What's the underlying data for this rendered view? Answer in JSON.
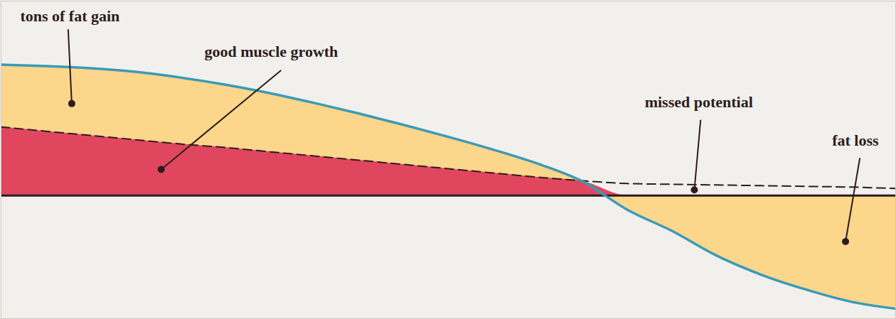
{
  "chart_data": {
    "type": "area",
    "x": [
      0,
      5,
      10,
      15,
      20,
      25,
      30,
      35,
      40,
      45,
      50,
      55,
      60,
      65,
      70,
      75,
      80,
      85,
      90,
      95,
      100
    ],
    "series": [
      {
        "color": "#3a9ab8",
        "line_style": "solid",
        "values": [
          185,
          183,
          180,
          175,
          167,
          157,
          145,
          131,
          116,
          100,
          83,
          65,
          45,
          20,
          -20,
          -50,
          -85,
          -112,
          -133,
          -150,
          -160
        ]
      },
      {
        "color": "#2b1d1e",
        "line_style": "dashed",
        "values": [
          97,
          91,
          85,
          79,
          73,
          68,
          62,
          56,
          50,
          44,
          38,
          32,
          26,
          21,
          17,
          16,
          15,
          14,
          13,
          12,
          10
        ]
      }
    ],
    "colors": [
      "#fcd68a",
      "#e0475f"
    ],
    "xlim": [
      0,
      100
    ],
    "ylim": [
      -174,
      275
    ],
    "xticks": [],
    "yticks": [],
    "tick_labels": false,
    "grid": false,
    "annotations": [
      {
        "text": "tons of fat gain",
        "x": 7.7,
        "y": 253,
        "from": [
          7.5,
          235
        ],
        "point": [
          7.9,
          130
        ]
      },
      {
        "text": "good muscle growth",
        "x": 30.2,
        "y": 203,
        "from": [
          31.3,
          177
        ],
        "point": [
          17.9,
          37
        ]
      },
      {
        "text": "missed potential",
        "x": 78,
        "y": 132,
        "from": [
          78.2,
          107
        ],
        "point": [
          77.5,
          8
        ]
      },
      {
        "text": "fat loss",
        "x": 95.5,
        "y": 78,
        "from": [
          96,
          53
        ],
        "point": [
          94.4,
          -65
        ]
      }
    ]
  }
}
